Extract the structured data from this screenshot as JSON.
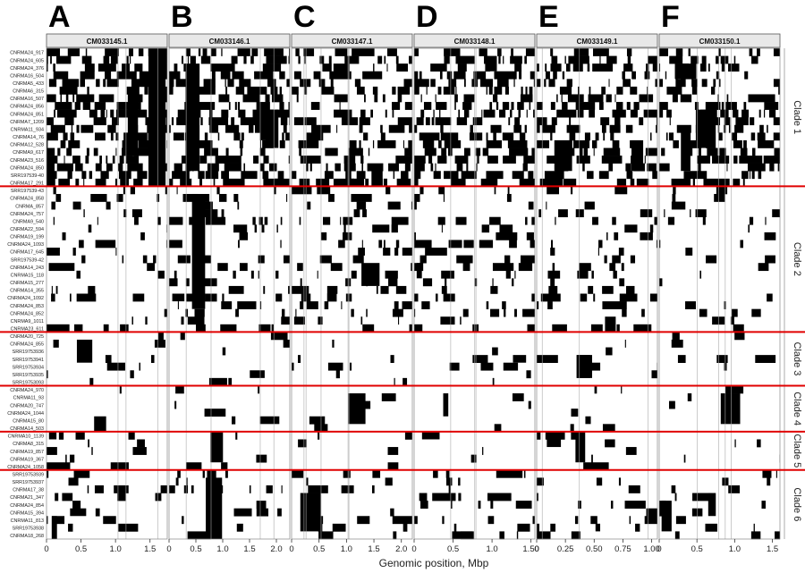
{
  "chart_data": {
    "type": "heatmap",
    "xlabel": "Genomic position, Mbp",
    "panels": [
      {
        "letter": "A",
        "chromosome": "CM033145.1",
        "xlim": [
          0,
          1.75
        ],
        "ticks": [
          0,
          0.5,
          1.0,
          1.5
        ],
        "tick_labels": [
          "0",
          "0.5",
          "1.0",
          "1.5"
        ]
      },
      {
        "letter": "B",
        "chromosome": "CM033146.1",
        "xlim": [
          0,
          2.25
        ],
        "ticks": [
          0,
          0.5,
          1.0,
          1.5,
          2.0
        ],
        "tick_labels": [
          "0",
          "0.5",
          "1.0",
          "1.5",
          "2.0"
        ]
      },
      {
        "letter": "C",
        "chromosome": "CM033147.1",
        "xlim": [
          0,
          2.2
        ],
        "ticks": [
          0,
          0.5,
          1.0,
          1.5,
          2.0
        ],
        "tick_labels": [
          "0",
          "0.5",
          "1.0",
          "1.5",
          "2.0"
        ]
      },
      {
        "letter": "D",
        "chromosome": "CM033148.1",
        "xlim": [
          0,
          1.55
        ],
        "ticks": [
          0,
          0.5,
          1.0,
          1.5
        ],
        "tick_labels": [
          "0",
          "0.5",
          "1.0",
          "1.50"
        ]
      },
      {
        "letter": "E",
        "chromosome": "CM033149.1",
        "xlim": [
          0,
          1.05
        ],
        "ticks": [
          0,
          0.25,
          0.5,
          0.75,
          1.0
        ],
        "tick_labels": [
          "0",
          "0.25",
          "0.50",
          "0.75",
          "1.00"
        ]
      },
      {
        "letter": "F",
        "chromosome": "CM033150.1",
        "xlim": [
          0,
          1.6
        ],
        "ticks": [
          0,
          0.5,
          1.0,
          1.5
        ],
        "tick_labels": [
          "0",
          "0.5",
          "1.0",
          "1.5"
        ]
      }
    ],
    "clades": [
      {
        "name": "Clade 1",
        "samples": [
          "CNRMA24_917",
          "CNRMA24_605",
          "CNRMA24_376",
          "CNRMA16_504",
          "CNRMA5_433",
          "CNRMA6_315",
          "CNRMA16_507",
          "CNRMA24_856",
          "CNRMA24_851",
          "CNRMA7_1209",
          "CNRMA11_934",
          "CNRMA14_76",
          "CNRMA12_528",
          "CNRMA9_617",
          "CNRMA23_516",
          "CNRMA24_850",
          "SRR197539-40",
          "CNRMA17_291"
        ]
      },
      {
        "name": "Clade 2",
        "samples": [
          "SRR197539-43",
          "CNRMA24_858",
          "CNRMA_857",
          "CNRMA24_757",
          "CNRMA9_540",
          "CNRMA22_594",
          "CNRMA19_199",
          "CNRMA24_1093",
          "CNRMA17_645",
          "SRR197539-42",
          "CNRMA14_243",
          "CNRMA15_118",
          "CNRMA15_277",
          "CNRMA14_355",
          "CNRMA24_1092",
          "CNRMA24_853",
          "CNRMA24_852",
          "CNRMA9_1011",
          "CNRMA23_611"
        ]
      },
      {
        "name": "Clade 3",
        "samples": [
          "CNRMA20_725",
          "CNRMA24_855",
          "SRR19753936",
          "SRR19753941",
          "SRR19753934",
          "SRR19753935",
          "SRR19753093"
        ]
      },
      {
        "name": "Clade 4",
        "samples": [
          "CNRMA24_970",
          "CNRMA11_93",
          "CNRMA20_747",
          "CNRMA24_1044",
          "CNRMA15_80",
          "CNRMA14_503"
        ]
      },
      {
        "name": "Clade 5",
        "samples": [
          "CNRMA10_1139",
          "CNRMA8_315",
          "CNRMA19_857",
          "CNRMA19_367",
          "CNRMA24_1058"
        ]
      },
      {
        "name": "Clade 6",
        "samples": [
          "SRR19753939",
          "SRR19753937",
          "CNRMA17_38",
          "CNRMA21_347",
          "CNRMA24_854",
          "CNRMA15_394",
          "CNRMA11_813",
          "SRR19753938",
          "CNRMA18_268"
        ]
      }
    ],
    "legend": "none",
    "grid": false
  },
  "colors": {
    "present": "#000000",
    "background": "#ffffff",
    "clade_separator": "#e00000",
    "strip_fill": "#e8e8e8",
    "reference_line": "#aaaaaa"
  }
}
